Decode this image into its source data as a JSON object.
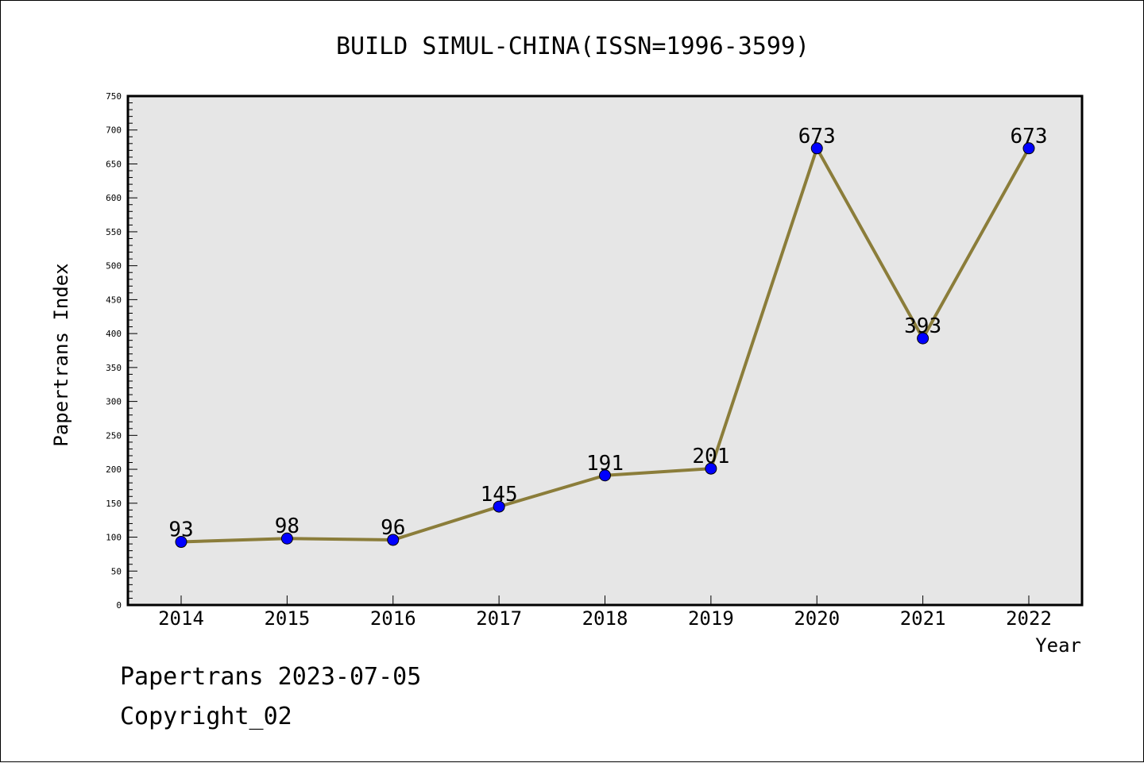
{
  "chart_data": {
    "type": "line",
    "title": "BUILD SIMUL-CHINA(ISSN=1996-3599)",
    "xlabel": "Year",
    "ylabel": "Papertrans Index",
    "categories": [
      "2014",
      "2015",
      "2016",
      "2017",
      "2018",
      "2019",
      "2020",
      "2021",
      "2022"
    ],
    "series": [
      {
        "values": [
          93,
          98,
          96,
          145,
          191,
          201,
          673,
          393,
          673
        ],
        "data_labels": [
          "93",
          "98",
          "96",
          "145",
          "191",
          "201",
          "673",
          "393",
          "673"
        ]
      }
    ],
    "ylim": [
      0,
      750
    ],
    "yticks": [
      0,
      50,
      100,
      150,
      200,
      250,
      300,
      350,
      400,
      450,
      500,
      550,
      600,
      650,
      700,
      750
    ],
    "ytick_labels": [
      "0",
      "50",
      "100",
      "150",
      "200",
      "250",
      "300",
      "350",
      "400",
      "450",
      "500",
      "550",
      "600",
      "650",
      "700",
      "750"
    ],
    "grid": false,
    "colors": {
      "line": "#8b7d3a",
      "marker": "#0000ff",
      "plot_background": "#e6e6e6"
    }
  },
  "footer": {
    "line1": "Papertrans 2023-07-05",
    "line2": "Copyright_02"
  }
}
